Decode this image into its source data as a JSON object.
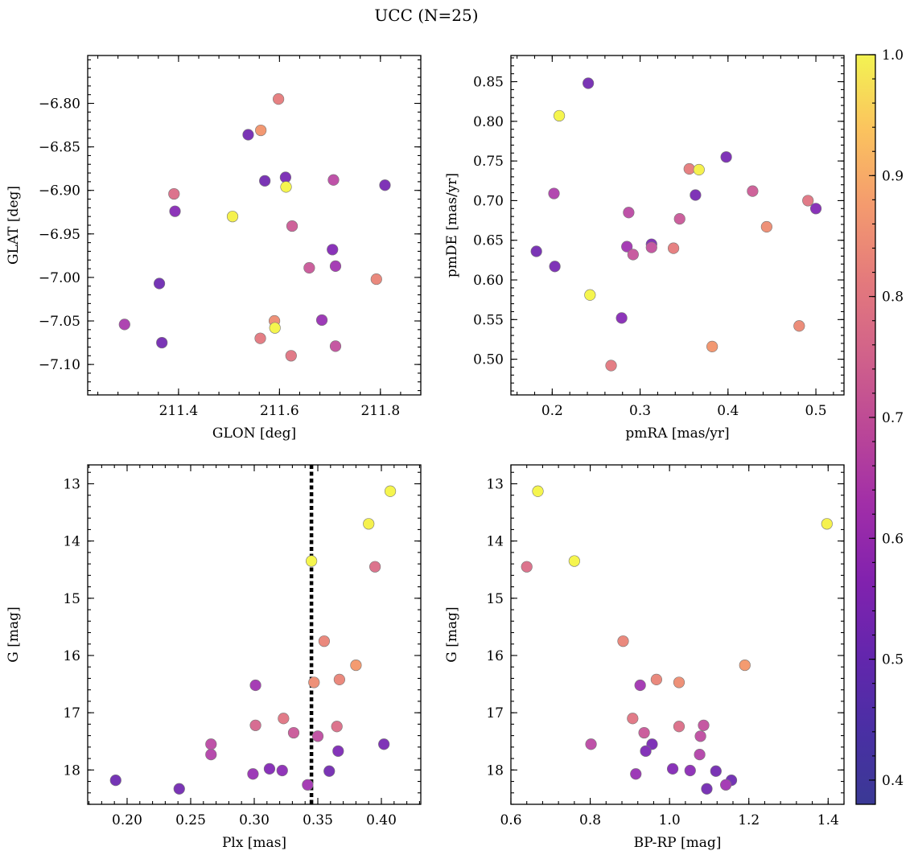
{
  "title": "UCC (N=25)",
  "colorbar": {
    "range": [
      0.38,
      1.0
    ],
    "ticks": [
      0.4,
      0.5,
      0.6,
      0.7,
      0.8,
      0.9,
      1.0
    ],
    "tick_labels": [
      "0.4",
      "0.5",
      "0.6",
      "0.7",
      "0.8",
      "0.9",
      "1.0"
    ],
    "colormap": "plasma"
  },
  "marker_edge_color": "#777777",
  "chart_data": [
    {
      "type": "scatter",
      "xlabel": "GLON [deg]",
      "ylabel": "GLAT [deg]",
      "xlim": [
        211.22,
        211.88
      ],
      "ylim": [
        -7.135,
        -6.745
      ],
      "xticks": [
        211.4,
        211.6,
        211.8
      ],
      "xtick_labels": [
        "211.4",
        "211.6",
        "211.8"
      ],
      "yticks": [
        -6.8,
        -6.85,
        -6.9,
        -6.95,
        -7.0,
        -7.05,
        -7.1
      ],
      "ytick_labels": [
        "−6.80",
        "−6.85",
        "−6.90",
        "−6.95",
        "−7.00",
        "−7.05",
        "−7.10"
      ],
      "y_inverted": false,
      "points": [
        {
          "x": 211.598,
          "y": -6.795,
          "c": 0.72
        },
        {
          "x": 211.563,
          "y": -6.831,
          "c": 0.78
        },
        {
          "x": 211.538,
          "y": -6.836,
          "c": 0.42
        },
        {
          "x": 211.571,
          "y": -6.889,
          "c": 0.42
        },
        {
          "x": 211.612,
          "y": -6.885,
          "c": 0.43
        },
        {
          "x": 211.613,
          "y": -6.896,
          "c": 0.99
        },
        {
          "x": 211.707,
          "y": -6.888,
          "c": 0.58
        },
        {
          "x": 211.809,
          "y": -6.894,
          "c": 0.43
        },
        {
          "x": 211.391,
          "y": -6.904,
          "c": 0.68
        },
        {
          "x": 211.393,
          "y": -6.924,
          "c": 0.46
        },
        {
          "x": 211.507,
          "y": -6.93,
          "c": 0.98
        },
        {
          "x": 211.625,
          "y": -6.941,
          "c": 0.63
        },
        {
          "x": 211.705,
          "y": -6.968,
          "c": 0.45
        },
        {
          "x": 211.711,
          "y": -6.987,
          "c": 0.52
        },
        {
          "x": 211.659,
          "y": -6.989,
          "c": 0.62
        },
        {
          "x": 211.792,
          "y": -7.002,
          "c": 0.74
        },
        {
          "x": 211.362,
          "y": -7.007,
          "c": 0.41
        },
        {
          "x": 211.293,
          "y": -7.054,
          "c": 0.54
        },
        {
          "x": 211.59,
          "y": -7.05,
          "c": 0.76
        },
        {
          "x": 211.684,
          "y": -7.049,
          "c": 0.5
        },
        {
          "x": 211.591,
          "y": -7.058,
          "c": 0.99
        },
        {
          "x": 211.367,
          "y": -7.075,
          "c": 0.42
        },
        {
          "x": 211.562,
          "y": -7.07,
          "c": 0.71
        },
        {
          "x": 211.711,
          "y": -7.079,
          "c": 0.6
        },
        {
          "x": 211.623,
          "y": -7.09,
          "c": 0.7
        }
      ]
    },
    {
      "type": "scatter",
      "xlabel": "pmRA [mas/yr]",
      "ylabel": "pmDE [mas/yr]",
      "xlim": [
        0.153,
        0.532
      ],
      "ylim": [
        0.455,
        0.883
      ],
      "xticks": [
        0.2,
        0.3,
        0.4,
        0.5
      ],
      "xtick_labels": [
        "0.2",
        "0.3",
        "0.4",
        "0.5"
      ],
      "yticks": [
        0.5,
        0.55,
        0.6,
        0.65,
        0.7,
        0.75,
        0.8,
        0.85
      ],
      "ytick_labels": [
        "0.50",
        "0.55",
        "0.60",
        "0.65",
        "0.70",
        "0.75",
        "0.80",
        "0.85"
      ],
      "y_inverted": false,
      "points": [
        {
          "x": 0.241,
          "y": 0.848,
          "c": 0.42
        },
        {
          "x": 0.208,
          "y": 0.807,
          "c": 0.99
        },
        {
          "x": 0.398,
          "y": 0.755,
          "c": 0.43
        },
        {
          "x": 0.356,
          "y": 0.74,
          "c": 0.72
        },
        {
          "x": 0.367,
          "y": 0.739,
          "c": 0.98
        },
        {
          "x": 0.428,
          "y": 0.712,
          "c": 0.63
        },
        {
          "x": 0.202,
          "y": 0.709,
          "c": 0.55
        },
        {
          "x": 0.363,
          "y": 0.707,
          "c": 0.43
        },
        {
          "x": 0.491,
          "y": 0.7,
          "c": 0.7
        },
        {
          "x": 0.5,
          "y": 0.69,
          "c": 0.45
        },
        {
          "x": 0.287,
          "y": 0.685,
          "c": 0.58
        },
        {
          "x": 0.345,
          "y": 0.677,
          "c": 0.62
        },
        {
          "x": 0.444,
          "y": 0.667,
          "c": 0.76
        },
        {
          "x": 0.313,
          "y": 0.645,
          "c": 0.44
        },
        {
          "x": 0.313,
          "y": 0.641,
          "c": 0.6
        },
        {
          "x": 0.285,
          "y": 0.642,
          "c": 0.52
        },
        {
          "x": 0.338,
          "y": 0.64,
          "c": 0.72
        },
        {
          "x": 0.182,
          "y": 0.636,
          "c": 0.42
        },
        {
          "x": 0.292,
          "y": 0.632,
          "c": 0.61
        },
        {
          "x": 0.203,
          "y": 0.617,
          "c": 0.43
        },
        {
          "x": 0.243,
          "y": 0.581,
          "c": 0.99
        },
        {
          "x": 0.279,
          "y": 0.552,
          "c": 0.46
        },
        {
          "x": 0.481,
          "y": 0.542,
          "c": 0.75
        },
        {
          "x": 0.382,
          "y": 0.516,
          "c": 0.78
        },
        {
          "x": 0.267,
          "y": 0.492,
          "c": 0.71
        }
      ]
    },
    {
      "type": "scatter",
      "xlabel": "Plx [mas]",
      "ylabel": "G [mag]",
      "xlim": [
        0.169,
        0.431
      ],
      "ylim": [
        12.67,
        18.6
      ],
      "xticks": [
        0.2,
        0.25,
        0.3,
        0.35,
        0.4
      ],
      "xtick_labels": [
        "0.20",
        "0.25",
        "0.30",
        "0.35",
        "0.40"
      ],
      "yticks": [
        13,
        14,
        15,
        16,
        17,
        18
      ],
      "ytick_labels": [
        "13",
        "14",
        "15",
        "16",
        "17",
        "18"
      ],
      "y_inverted": true,
      "vline": 0.345,
      "points": [
        {
          "x": 0.407,
          "y": 13.13,
          "c": 0.99
        },
        {
          "x": 0.39,
          "y": 13.7,
          "c": 0.98
        },
        {
          "x": 0.345,
          "y": 14.35,
          "c": 0.99
        },
        {
          "x": 0.395,
          "y": 14.45,
          "c": 0.68
        },
        {
          "x": 0.355,
          "y": 15.75,
          "c": 0.74
        },
        {
          "x": 0.38,
          "y": 16.17,
          "c": 0.79
        },
        {
          "x": 0.367,
          "y": 16.42,
          "c": 0.74
        },
        {
          "x": 0.347,
          "y": 16.47,
          "c": 0.76
        },
        {
          "x": 0.301,
          "y": 16.52,
          "c": 0.52
        },
        {
          "x": 0.323,
          "y": 17.1,
          "c": 0.7
        },
        {
          "x": 0.301,
          "y": 17.22,
          "c": 0.66
        },
        {
          "x": 0.365,
          "y": 17.24,
          "c": 0.68
        },
        {
          "x": 0.331,
          "y": 17.35,
          "c": 0.62
        },
        {
          "x": 0.35,
          "y": 17.41,
          "c": 0.59
        },
        {
          "x": 0.266,
          "y": 17.55,
          "c": 0.58
        },
        {
          "x": 0.402,
          "y": 17.55,
          "c": 0.43
        },
        {
          "x": 0.366,
          "y": 17.67,
          "c": 0.44
        },
        {
          "x": 0.266,
          "y": 17.73,
          "c": 0.56
        },
        {
          "x": 0.312,
          "y": 17.98,
          "c": 0.45
        },
        {
          "x": 0.322,
          "y": 18.01,
          "c": 0.47
        },
        {
          "x": 0.359,
          "y": 18.02,
          "c": 0.42
        },
        {
          "x": 0.299,
          "y": 18.07,
          "c": 0.5
        },
        {
          "x": 0.191,
          "y": 18.18,
          "c": 0.41
        },
        {
          "x": 0.342,
          "y": 18.26,
          "c": 0.52
        },
        {
          "x": 0.241,
          "y": 18.33,
          "c": 0.42
        }
      ]
    },
    {
      "type": "scatter",
      "xlabel": "BP-RP [mag]",
      "ylabel": "G [mag]",
      "xlim": [
        0.6,
        1.44
      ],
      "ylim": [
        12.67,
        18.6
      ],
      "xticks": [
        0.6,
        0.8,
        1.0,
        1.2,
        1.4
      ],
      "xtick_labels": [
        "0.6",
        "0.8",
        "1.0",
        "1.2",
        "1.4"
      ],
      "yticks": [
        13,
        14,
        15,
        16,
        17,
        18
      ],
      "ytick_labels": [
        "13",
        "14",
        "15",
        "16",
        "17",
        "18"
      ],
      "y_inverted": true,
      "points": [
        {
          "x": 0.668,
          "y": 13.13,
          "c": 0.99
        },
        {
          "x": 1.397,
          "y": 13.7,
          "c": 0.98
        },
        {
          "x": 0.76,
          "y": 14.35,
          "c": 0.99
        },
        {
          "x": 0.64,
          "y": 14.45,
          "c": 0.68
        },
        {
          "x": 0.883,
          "y": 15.75,
          "c": 0.74
        },
        {
          "x": 1.19,
          "y": 16.17,
          "c": 0.79
        },
        {
          "x": 0.967,
          "y": 16.42,
          "c": 0.74
        },
        {
          "x": 1.024,
          "y": 16.47,
          "c": 0.76
        },
        {
          "x": 0.926,
          "y": 16.52,
          "c": 0.52
        },
        {
          "x": 0.907,
          "y": 17.1,
          "c": 0.7
        },
        {
          "x": 1.024,
          "y": 17.24,
          "c": 0.68
        },
        {
          "x": 1.086,
          "y": 17.22,
          "c": 0.6
        },
        {
          "x": 0.936,
          "y": 17.35,
          "c": 0.62
        },
        {
          "x": 1.078,
          "y": 17.41,
          "c": 0.59
        },
        {
          "x": 0.802,
          "y": 17.55,
          "c": 0.58
        },
        {
          "x": 0.956,
          "y": 17.55,
          "c": 0.43
        },
        {
          "x": 0.94,
          "y": 17.67,
          "c": 0.44
        },
        {
          "x": 1.076,
          "y": 17.73,
          "c": 0.56
        },
        {
          "x": 1.008,
          "y": 17.98,
          "c": 0.45
        },
        {
          "x": 1.052,
          "y": 18.01,
          "c": 0.47
        },
        {
          "x": 1.117,
          "y": 18.02,
          "c": 0.42
        },
        {
          "x": 0.915,
          "y": 18.07,
          "c": 0.5
        },
        {
          "x": 1.156,
          "y": 18.18,
          "c": 0.41
        },
        {
          "x": 1.142,
          "y": 18.26,
          "c": 0.52
        },
        {
          "x": 1.094,
          "y": 18.33,
          "c": 0.42
        }
      ]
    }
  ]
}
